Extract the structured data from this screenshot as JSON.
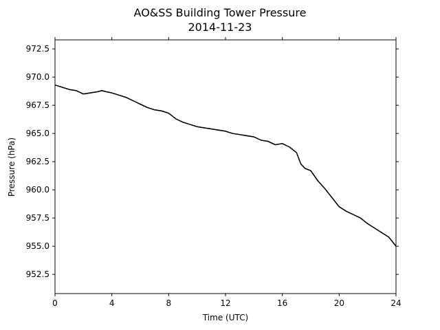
{
  "chart_data": {
    "type": "line",
    "title": "AO&SS Building Tower Pressure",
    "subtitle": "2014-11-23",
    "xlabel": "Time (UTC)",
    "ylabel": "Pressure (hPa)",
    "xlim": [
      0,
      24
    ],
    "ylim": [
      950.8,
      973.3
    ],
    "x_ticks": [
      0,
      4,
      8,
      12,
      16,
      20,
      24
    ],
    "y_ticks": [
      952.5,
      955.0,
      957.5,
      960.0,
      962.5,
      965.0,
      967.5,
      970.0,
      972.5
    ],
    "x_tick_labels": [
      "0",
      "4",
      "8",
      "12",
      "16",
      "20",
      "24"
    ],
    "y_tick_labels": [
      "952.5",
      "955.0",
      "957.5",
      "960.0",
      "962.5",
      "965.0",
      "967.5",
      "970.0",
      "972.5"
    ],
    "grid": false,
    "line_color": "#000000",
    "series": [
      {
        "x": [
          0,
          0.5,
          1,
          1.5,
          2,
          2.5,
          3,
          3.3,
          3.6,
          4,
          4.5,
          5,
          5.5,
          6,
          6.5,
          7,
          7.5,
          8,
          8.5,
          9,
          9.5,
          10,
          10.5,
          11,
          11.5,
          12,
          12.5,
          13,
          13.5,
          14,
          14.5,
          15,
          15.5,
          16,
          16.5,
          17,
          17.3,
          17.6,
          18,
          18.5,
          19,
          19.5,
          20,
          20.5,
          21,
          21.5,
          22,
          22.5,
          23,
          23.5,
          24
        ],
        "y": [
          969.3,
          969.1,
          968.9,
          968.8,
          968.5,
          968.6,
          968.7,
          968.8,
          968.7,
          968.6,
          968.4,
          968.2,
          967.9,
          967.6,
          967.3,
          967.1,
          967.0,
          966.8,
          966.3,
          966.0,
          965.8,
          965.6,
          965.5,
          965.4,
          965.3,
          965.2,
          965.0,
          964.9,
          964.8,
          964.7,
          964.4,
          964.3,
          964.0,
          964.1,
          963.8,
          963.3,
          962.3,
          961.9,
          961.7,
          960.8,
          960.1,
          959.3,
          958.5,
          958.1,
          957.8,
          957.5,
          957.0,
          956.6,
          956.2,
          955.8,
          955.0
        ]
      }
    ]
  }
}
